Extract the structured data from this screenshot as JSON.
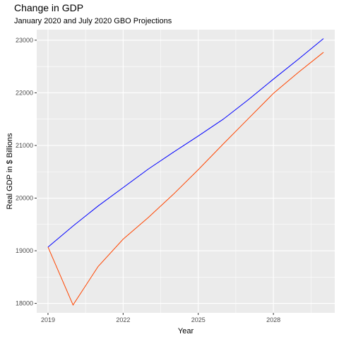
{
  "chart_data": {
    "type": "line",
    "title": "Change in GDP",
    "subtitle": "January 2020 and July 2020 GBO Projections",
    "xlabel": "Year",
    "ylabel": "Real GDP in $ Billions",
    "x_ticks": [
      2019,
      2022,
      2025,
      2028
    ],
    "y_ticks": [
      18000,
      19000,
      20000,
      21000,
      22000,
      23000
    ],
    "xlim": [
      2018.55,
      2030.45
    ],
    "ylim": [
      17820,
      23200
    ],
    "grid": true,
    "legend": "none",
    "x": [
      2019,
      2020,
      2021,
      2022,
      2023,
      2024,
      2025,
      2026,
      2027,
      2028,
      2029,
      2030
    ],
    "series": [
      {
        "color": "#0000ff",
        "values": [
          19070,
          19470,
          19850,
          20200,
          20550,
          20870,
          21180,
          21500,
          21870,
          22260,
          22640,
          23030
        ]
      },
      {
        "color": "#ff4500",
        "values": [
          19070,
          17970,
          18700,
          19220,
          19630,
          20070,
          20540,
          21030,
          21510,
          21990,
          22390,
          22770
        ]
      }
    ]
  }
}
